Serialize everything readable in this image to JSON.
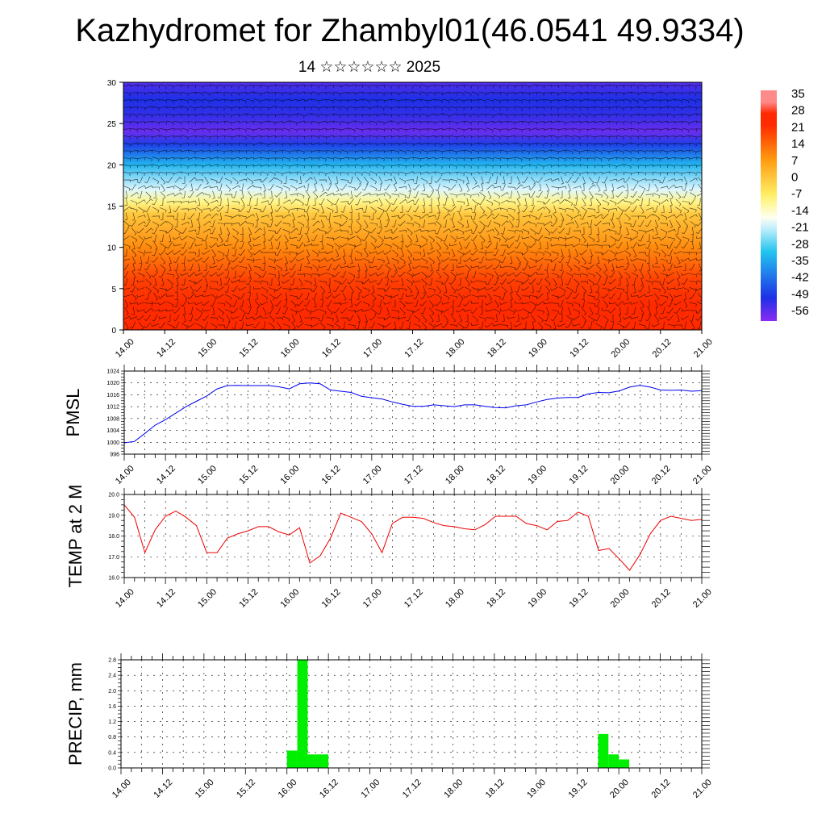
{
  "header": {
    "title": "Kazhydromet for Zhambyl01(46.0541 49.9334)",
    "subtitle": "14 ☆☆☆☆☆☆ 2025"
  },
  "x_tick_labels": [
    "14.00",
    "14.12",
    "15.00",
    "15.12",
    "16.00",
    "16.12",
    "17.00",
    "17.12",
    "18.00",
    "18.12",
    "19.00",
    "19.12",
    "20.00",
    "20.12",
    "21.00"
  ],
  "chart_data": [
    {
      "type": "heatmap",
      "name_hint": "cross-section",
      "x_categories": [
        "14.00",
        "14.12",
        "15.00",
        "15.12",
        "16.00",
        "16.12",
        "17.00",
        "17.12",
        "18.00",
        "18.12",
        "19.00",
        "19.12",
        "20.00",
        "20.12",
        "21.00"
      ],
      "ylim": [
        0,
        30
      ],
      "y_ticks": [
        0,
        5,
        10,
        15,
        20,
        25,
        30
      ],
      "colorbar_labels": [
        "35",
        "28",
        "21",
        "14",
        "7",
        "0",
        "-7",
        "-14",
        "-21",
        "-28",
        "-35",
        "-42",
        "-49",
        "-56"
      ],
      "colors": {
        "warm": "#ff2a00",
        "orange": "#ff9a10",
        "yellow": "#fff36a",
        "white": "#ffffff",
        "cyan": "#22c4f0",
        "blue": "#1d30e6",
        "violet": "#8a2cf2"
      },
      "temperature_profile": [
        [
          0,
          32
        ],
        [
          3,
          28
        ],
        [
          6,
          22
        ],
        [
          10,
          12
        ],
        [
          14,
          2
        ],
        [
          15.5,
          -8
        ],
        [
          17,
          -18
        ],
        [
          20,
          -32
        ],
        [
          22.5,
          -48
        ],
        [
          24,
          -57
        ],
        [
          26,
          -52
        ],
        [
          28,
          -50
        ],
        [
          30,
          -55
        ]
      ]
    },
    {
      "type": "line",
      "ylabel": "PMSL",
      "ylim": [
        996,
        1024
      ],
      "y_ticks": [
        996,
        1000,
        1004,
        1008,
        1012,
        1016,
        1020,
        1024
      ],
      "color": "#0000ee",
      "x": [
        0,
        3,
        6,
        9,
        12,
        15,
        18,
        21,
        24,
        27,
        30,
        33,
        36,
        39,
        42,
        45,
        48,
        51,
        54,
        57,
        60,
        63,
        66,
        69,
        72,
        75,
        78,
        81,
        84,
        87,
        90,
        93,
        96,
        99,
        102,
        105,
        108,
        111,
        114,
        117,
        120,
        123,
        126,
        129,
        132,
        135,
        138,
        141,
        144,
        147,
        150,
        153,
        156,
        159,
        162,
        165,
        168
      ],
      "values": [
        999.8,
        1000.3,
        1003,
        1005.8,
        1007.6,
        1009.8,
        1012,
        1013.8,
        1015.6,
        1018,
        1019.1,
        1019.2,
        1019.1,
        1019.1,
        1019.1,
        1018.7,
        1018,
        1019.7,
        1020,
        1019.7,
        1017.6,
        1017.2,
        1016.8,
        1015.5,
        1015,
        1014.6,
        1013.6,
        1012.8,
        1012.1,
        1012.1,
        1012.6,
        1012.3,
        1012,
        1012.6,
        1012.6,
        1012.1,
        1011.7,
        1011.6,
        1012.3,
        1012.6,
        1013.6,
        1014.4,
        1014.9,
        1015.1,
        1015.1,
        1016.3,
        1016.8,
        1016.7,
        1017.3,
        1018.6,
        1019.2,
        1018.6,
        1017.6,
        1017.5,
        1017.6,
        1017.2,
        1017.4
      ]
    },
    {
      "type": "line",
      "ylabel": "TEMP at 2 M",
      "ylim": [
        16,
        20
      ],
      "y_ticks": [
        16,
        17,
        18,
        19,
        20
      ],
      "y_tick_labels": [
        "16.0",
        "17.0",
        "18.0",
        "19.0",
        "20.0"
      ],
      "color": "#ee0000",
      "x": [
        0,
        3,
        6,
        9,
        12,
        15,
        18,
        21,
        24,
        27,
        30,
        33,
        36,
        39,
        42,
        45,
        48,
        51,
        54,
        57,
        60,
        63,
        66,
        69,
        72,
        75,
        78,
        81,
        84,
        87,
        90,
        93,
        96,
        99,
        102,
        105,
        108,
        111,
        114,
        117,
        120,
        123,
        126,
        129,
        132,
        135,
        138,
        141,
        144,
        147,
        150,
        153,
        156,
        159,
        162,
        165,
        168
      ],
      "values": [
        19.5,
        18.9,
        17.2,
        18.3,
        18.95,
        19.2,
        18.9,
        18.5,
        17.2,
        17.2,
        17.9,
        18.1,
        18.25,
        18.45,
        18.45,
        18.2,
        18.05,
        18.4,
        16.7,
        17.05,
        17.9,
        19.1,
        18.9,
        18.7,
        18.1,
        17.2,
        18.6,
        18.9,
        18.9,
        18.85,
        18.65,
        18.5,
        18.45,
        18.35,
        18.3,
        18.55,
        18.95,
        18.95,
        18.95,
        18.6,
        18.5,
        18.3,
        18.7,
        18.75,
        19.15,
        18.95,
        17.3,
        17.4,
        16.9,
        16.35,
        17.1,
        18.1,
        18.75,
        18.95,
        18.85,
        18.75,
        18.8
      ]
    },
    {
      "type": "bar",
      "ylabel": "PRECIP, mm",
      "ylim": [
        0,
        2.8
      ],
      "y_ticks": [
        0,
        0.4,
        0.8,
        1.2,
        1.6,
        2.0,
        2.4,
        2.8
      ],
      "y_tick_labels": [
        "0.0",
        "0.4",
        "0.8",
        "1.2",
        "1.6",
        "2.0",
        "2.4",
        "2.8"
      ],
      "color": "#00ee00",
      "bars": [
        {
          "x": 48,
          "width": 3,
          "value": 0.45
        },
        {
          "x": 51,
          "width": 3,
          "value": 2.8
        },
        {
          "x": 54,
          "width": 6,
          "value": 0.35
        },
        {
          "x": 138,
          "width": 3,
          "value": 0.88
        },
        {
          "x": 141,
          "width": 3,
          "value": 0.35
        },
        {
          "x": 144,
          "width": 3,
          "value": 0.22
        }
      ]
    }
  ]
}
